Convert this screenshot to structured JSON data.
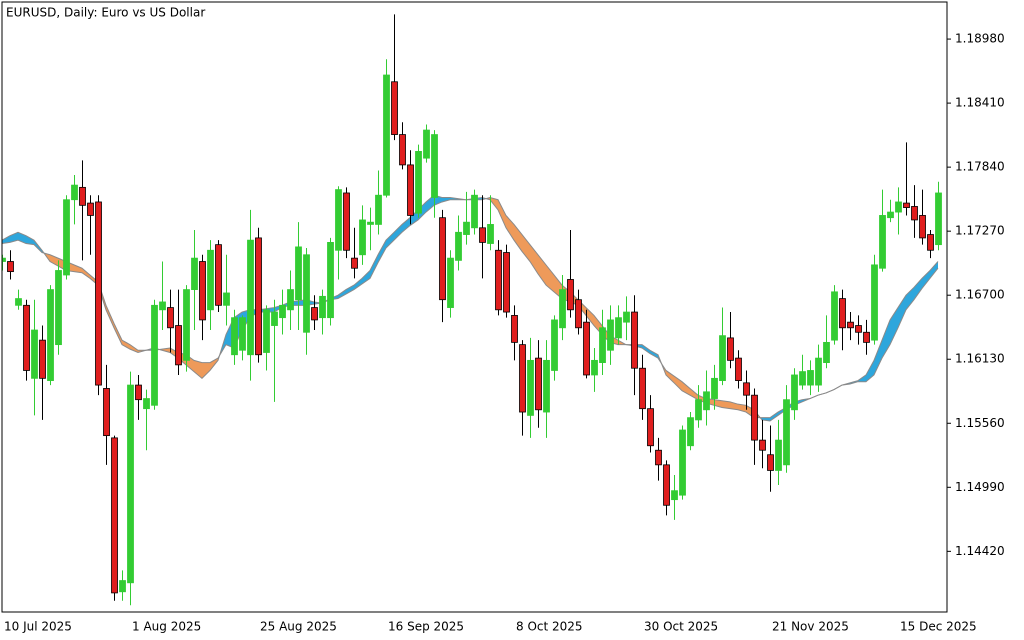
{
  "chart_data": {
    "type": "candlestick",
    "title": "EURUSD, Daily:  Euro vs US Dollar",
    "categories": [
      "10 Jul 2025",
      null,
      null,
      null,
      null,
      null,
      null,
      null,
      null,
      null,
      null,
      null,
      null,
      null,
      null,
      null,
      "1 Aug 2025",
      null,
      null,
      null,
      null,
      null,
      null,
      null,
      null,
      null,
      null,
      null,
      null,
      null,
      null,
      null,
      "25 Aug 2025",
      null,
      null,
      null,
      null,
      null,
      null,
      null,
      null,
      null,
      null,
      null,
      null,
      null,
      null,
      null,
      "16 Sep 2025",
      null,
      null,
      null,
      null,
      null,
      null,
      null,
      null,
      null,
      null,
      null,
      null,
      null,
      null,
      null,
      "8 Oct 2025",
      null,
      null,
      null,
      null,
      null,
      null,
      null,
      null,
      null,
      null,
      null,
      null,
      null,
      null,
      null,
      "30 Oct 2025",
      null,
      null,
      null,
      null,
      null,
      null,
      null,
      null,
      null,
      null,
      null,
      null,
      null,
      null,
      null,
      "21 Nov 2025",
      null,
      null,
      null,
      null,
      null,
      null,
      null,
      null,
      null,
      null,
      null,
      null,
      null,
      null,
      null,
      "15 Dec 2025",
      null,
      null,
      null,
      null,
      null
    ],
    "open": [
      1.17,
      1.17,
      1.1661,
      1.1661,
      1.1596,
      1.163,
      1.1594,
      1.1626,
      1.1688,
      1.1755,
      1.1766,
      1.1752,
      1.1753,
      1.1587,
      1.1543,
      1.1406,
      1.1414,
      1.159,
      1.1569,
      1.1572,
      1.1657,
      1.1659,
      1.1643,
      1.1612,
      1.1675,
      1.17,
      1.1657,
      1.1715,
      1.1661,
      1.1617,
      1.1621,
      1.1617,
      1.1721,
      1.1619,
      1.1643,
      1.165,
      1.1657,
      1.1666,
      1.1637,
      1.1659,
      1.165,
      1.165,
      1.171,
      1.1761,
      1.1703,
      1.1706,
      1.1733,
      1.1733,
      1.1759,
      1.186,
      1.1813,
      1.1786,
      1.1743,
      1.1792,
      1.1757,
      1.1739,
      1.1659,
      1.1701,
      1.1724,
      1.173,
      1.173,
      1.1716,
      1.171,
      1.1708,
      1.1652,
      1.1626,
      1.1563,
      1.1614,
      1.1566,
      1.1603,
      1.1641,
      1.1684,
      1.1666,
      1.1646,
      1.1599,
      1.161,
      1.1621,
      1.1632,
      1.1646,
      1.1655,
      1.1605,
      1.1569,
      1.1532,
      1.1519,
      1.1488,
      1.1492,
      1.1536,
      1.1559,
      1.1568,
      1.1578,
      1.1594,
      1.1632,
      1.1614,
      1.1592,
      1.1581,
      1.1541,
      1.1528,
      1.1514,
      1.1519,
      1.1568,
      1.159,
      1.159,
      1.159,
      1.161,
      1.163,
      1.1667,
      1.1646,
      1.1643,
      1.1637,
      1.163,
      1.1694,
      1.1739,
      1.1744,
      1.1752,
      1.1749,
      1.1741,
      1.1724,
      1.1715
    ],
    "high": [
      1.1706,
      1.171,
      1.1675,
      1.1666,
      1.1666,
      1.1643,
      1.1679,
      1.1701,
      1.1759,
      1.1777,
      1.179,
      1.1759,
      1.1759,
      1.1608,
      1.1545,
      1.1425,
      1.1602,
      1.1599,
      1.1586,
      1.1666,
      1.17,
      1.1675,
      1.1675,
      1.1679,
      1.1728,
      1.1706,
      1.1719,
      1.1719,
      1.1706,
      1.1657,
      1.1652,
      1.1746,
      1.173,
      1.1661,
      1.1666,
      1.1675,
      1.1692,
      1.1735,
      1.1712,
      1.167,
      1.1675,
      1.1721,
      1.1767,
      1.1766,
      1.173,
      1.175,
      1.1748,
      1.1781,
      1.188,
      1.192,
      1.1824,
      1.1799,
      1.1804,
      1.1822,
      1.1817,
      1.1746,
      1.171,
      1.1741,
      1.1762,
      1.1764,
      1.1759,
      1.1759,
      1.1719,
      1.1715,
      1.1661,
      1.163,
      1.1632,
      1.163,
      1.163,
      1.1652,
      1.1688,
      1.1728,
      1.1675,
      1.1657,
      1.1623,
      1.1657,
      1.1661,
      1.1661,
      1.1669,
      1.167,
      1.1617,
      1.1581,
      1.1543,
      1.1523,
      1.151,
      1.1554,
      1.1566,
      1.159,
      1.1603,
      1.1608,
      1.1659,
      1.1655,
      1.1621,
      1.1603,
      1.1587,
      1.1559,
      1.1554,
      1.1559,
      1.159,
      1.1605,
      1.1617,
      1.1612,
      1.1626,
      1.1652,
      1.1679,
      1.1675,
      1.1655,
      1.1652,
      1.1648,
      1.1706,
      1.1764,
      1.1755,
      1.1766,
      1.1806,
      1.1768,
      1.1764,
      1.1728,
      1.1771
    ],
    "low": [
      1.1692,
      1.1684,
      1.1657,
      1.1594,
      1.1563,
      1.1559,
      1.159,
      1.1617,
      1.1684,
      1.1733,
      1.1701,
      1.1706,
      1.1581,
      1.1519,
      1.1398,
      1.1398,
      1.1394,
      1.1559,
      1.1532,
      1.1568,
      1.1639,
      1.1619,
      1.1599,
      1.1602,
      1.1639,
      1.163,
      1.1639,
      1.1655,
      1.1643,
      1.1608,
      1.1612,
      1.1594,
      1.161,
      1.1603,
      1.1575,
      1.1635,
      1.1639,
      1.1639,
      1.1617,
      1.1639,
      1.1635,
      1.1643,
      1.1684,
      1.1703,
      1.1685,
      1.1697,
      1.171,
      1.1724,
      1.1757,
      1.1808,
      1.1782,
      1.1733,
      1.1739,
      1.1788,
      1.1739,
      1.1646,
      1.165,
      1.1692,
      1.1715,
      1.1724,
      1.1685,
      1.171,
      1.1652,
      1.165,
      1.1612,
      1.1545,
      1.1543,
      1.1552,
      1.1543,
      1.1594,
      1.163,
      1.165,
      1.1635,
      1.1596,
      1.1584,
      1.1599,
      1.1608,
      1.1626,
      1.163,
      1.1581,
      1.1559,
      1.153,
      1.1505,
      1.1474,
      1.147,
      1.1488,
      1.1532,
      1.1552,
      1.1554,
      1.1568,
      1.159,
      1.1605,
      1.1587,
      1.1568,
      1.1519,
      1.1516,
      1.1495,
      1.1501,
      1.1512,
      1.1559,
      1.1586,
      1.1581,
      1.1584,
      1.1605,
      1.1626,
      1.1621,
      1.163,
      1.1626,
      1.1617,
      1.1626,
      1.1691,
      1.1735,
      1.1724,
      1.1741,
      1.1721,
      1.1715,
      1.1703,
      1.171
    ],
    "close": [
      1.1703,
      1.1691,
      1.1667,
      1.1603,
      1.1639,
      1.1596,
      1.1675,
      1.1692,
      1.1755,
      1.1768,
      1.175,
      1.1741,
      1.159,
      1.1545,
      1.1405,
      1.1416,
      1.159,
      1.1577,
      1.1578,
      1.1661,
      1.1664,
      1.1641,
      1.1608,
      1.1675,
      1.1703,
      1.1648,
      1.171,
      1.1661,
      1.1672,
      1.165,
      1.165,
      1.1719,
      1.1617,
      1.1657,
      1.1655,
      1.1661,
      1.1675,
      1.1713,
      1.1706,
      1.1648,
      1.1669,
      1.1717,
      1.1764,
      1.171,
      1.1694,
      1.1737,
      1.1735,
      1.1759,
      1.1866,
      1.1813,
      1.1786,
      1.1741,
      1.1798,
      1.1817,
      1.1813,
      1.1666,
      1.1703,
      1.1726,
      1.1735,
      1.1759,
      1.1717,
      1.1733,
      1.1657,
      1.1655,
      1.1628,
      1.1566,
      1.1612,
      1.1568,
      1.1612,
      1.1648,
      1.1675,
      1.1657,
      1.1641,
      1.1599,
      1.1612,
      1.1641,
      1.1648,
      1.165,
      1.1655,
      1.1605,
      1.1569,
      1.1536,
      1.1519,
      1.1483,
      1.1496,
      1.155,
      1.1561,
      1.1577,
      1.1584,
      1.1596,
      1.1634,
      1.1612,
      1.1594,
      1.1581,
      1.1541,
      1.1532,
      1.1514,
      1.1541,
      1.1577,
      1.1599,
      1.1602,
      1.1603,
      1.1614,
      1.1628,
      1.1673,
      1.1641,
      1.1641,
      1.1637,
      1.1628,
      1.1697,
      1.1741,
      1.1744,
      1.1753,
      1.1748,
      1.1737,
      1.1721,
      1.171,
      1.1761
    ],
    "up_color": "#33cc33",
    "down_color": "#e01e1e",
    "ribbon": {
      "fast": [
        1.1719,
        1.1723,
        1.1726,
        1.1723,
        1.1719,
        1.171,
        1.17,
        1.1696,
        1.1692,
        1.1691,
        1.169,
        1.1685,
        1.1679,
        1.1657,
        1.1641,
        1.1626,
        1.1622,
        1.1619,
        1.1621,
        1.1623,
        1.1621,
        1.1619,
        1.1614,
        1.1608,
        1.1602,
        1.1596,
        1.1603,
        1.1612,
        1.1635,
        1.165,
        1.1655,
        1.1657,
        1.1657,
        1.1658,
        1.1659,
        1.1661,
        1.1664,
        1.1665,
        1.1666,
        1.1664,
        1.1663,
        1.1667,
        1.167,
        1.1675,
        1.1679,
        1.1685,
        1.1692,
        1.1706,
        1.1719,
        1.1726,
        1.1733,
        1.1739,
        1.1746,
        1.1753,
        1.1759,
        1.1757,
        1.1757,
        1.1756,
        1.1755,
        1.1756,
        1.1757,
        1.1755,
        1.1746,
        1.173,
        1.1719,
        1.1709,
        1.17,
        1.1689,
        1.1679,
        1.1673,
        1.1667,
        1.1664,
        1.1661,
        1.1652,
        1.1643,
        1.1635,
        1.1628,
        1.1626,
        1.1626,
        1.1626,
        1.1626,
        1.1621,
        1.1617,
        1.1599,
        1.1592,
        1.1585,
        1.1581,
        1.1577,
        1.1574,
        1.1572,
        1.157,
        1.1569,
        1.1568,
        1.1566,
        1.1561,
        1.1561,
        1.1561,
        1.1566,
        1.157,
        1.1575,
        1.1577,
        1.1578,
        1.1581,
        1.1583,
        1.1586,
        1.159,
        1.1592,
        1.1594,
        1.1599,
        1.1612,
        1.163,
        1.1648,
        1.1659,
        1.167,
        1.1677,
        1.1685,
        1.1692,
        1.17
      ],
      "slow": [
        1.1716,
        1.1717,
        1.1719,
        1.1716,
        1.1715,
        1.1708,
        1.1706,
        1.1703,
        1.17,
        1.1697,
        1.1694,
        1.1688,
        1.1682,
        1.1661,
        1.1645,
        1.163,
        1.1626,
        1.1621,
        1.1621,
        1.1621,
        1.1622,
        1.1623,
        1.1619,
        1.1617,
        1.1612,
        1.161,
        1.161,
        1.1614,
        1.1626,
        1.1623,
        1.1639,
        1.165,
        1.1655,
        1.1655,
        1.1655,
        1.1659,
        1.1661,
        1.1661,
        1.1661,
        1.1662,
        1.1663,
        1.1666,
        1.1667,
        1.1671,
        1.1675,
        1.168,
        1.1685,
        1.1699,
        1.1712,
        1.1719,
        1.1726,
        1.1732,
        1.1737,
        1.1744,
        1.175,
        1.1753,
        1.1755,
        1.1755,
        1.1755,
        1.1755,
        1.1755,
        1.1757,
        1.1755,
        1.1741,
        1.1733,
        1.1724,
        1.1715,
        1.1706,
        1.1697,
        1.1688,
        1.1679,
        1.1673,
        1.1666,
        1.1659,
        1.1652,
        1.1643,
        1.1634,
        1.163,
        1.1626,
        1.1625,
        1.1623,
        1.1618,
        1.1614,
        1.1603,
        1.1598,
        1.1593,
        1.1587,
        1.1581,
        1.1578,
        1.1577,
        1.1576,
        1.1575,
        1.1573,
        1.1572,
        1.1568,
        1.1559,
        1.1558,
        1.1563,
        1.1568,
        1.1572,
        1.1575,
        1.1578,
        1.1581,
        1.1583,
        1.1586,
        1.159,
        1.1591,
        1.1593,
        1.1593,
        1.1599,
        1.1614,
        1.1626,
        1.1641,
        1.1657,
        1.1666,
        1.1676,
        1.1685,
        1.1694
      ],
      "above_color": "#2ea6dc",
      "below_color": "#ee9a5a",
      "line_color": "#8a8a8a"
    },
    "ylim": [
      1.1388,
      1.1931
    ],
    "yticks": [
      {
        "value": 1.1442,
        "label": "1.14420"
      },
      {
        "value": 1.1499,
        "label": "1.14990"
      },
      {
        "value": 1.1556,
        "label": "1.15560"
      },
      {
        "value": 1.1613,
        "label": "1.16130"
      },
      {
        "value": 1.167,
        "label": "1.16700"
      },
      {
        "value": 1.1727,
        "label": "1.17270"
      },
      {
        "value": 1.1784,
        "label": "1.17840"
      },
      {
        "value": 1.1841,
        "label": "1.18410"
      },
      {
        "value": 1.1898,
        "label": "1.18980"
      }
    ],
    "grid": false
  }
}
